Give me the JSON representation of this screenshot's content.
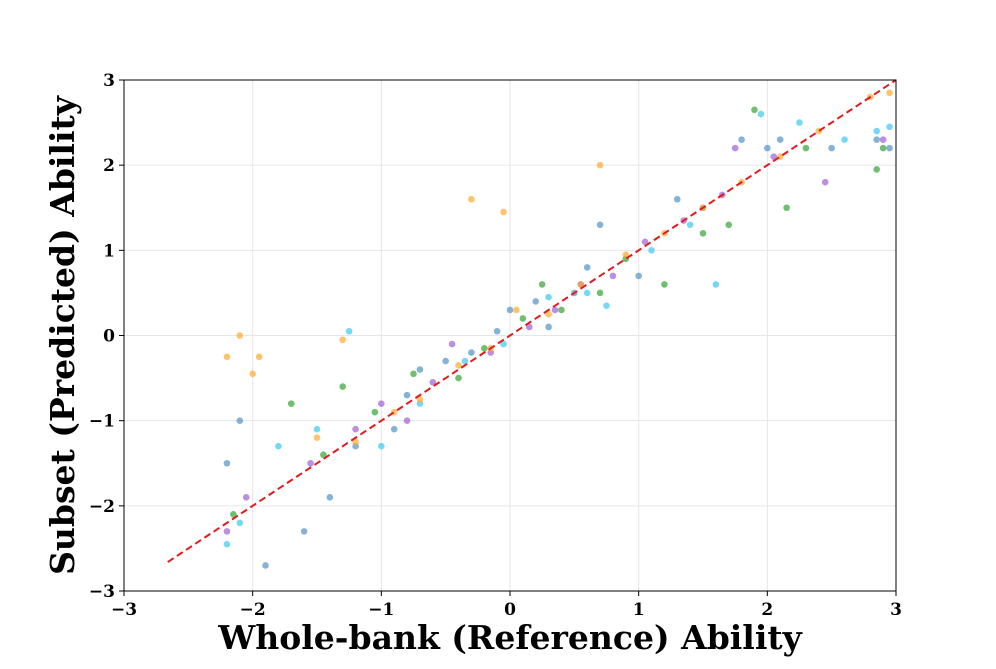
{
  "chart_data": {
    "type": "scatter",
    "title": "",
    "xlabel": "Whole-bank (Reference) Ability",
    "ylabel": "Subset (Predicted) Ability",
    "xlim": [
      -3,
      3
    ],
    "ylim": [
      -3,
      3
    ],
    "xticks": [
      -3,
      -2,
      -1,
      0,
      1,
      2,
      3
    ],
    "yticks": [
      -3,
      -2,
      -1,
      0,
      1,
      2,
      3
    ],
    "xtick_labels": [
      "−3",
      "−2",
      "−1",
      "0",
      "1",
      "2",
      "3"
    ],
    "ytick_labels": [
      "−3",
      "−2",
      "−1",
      "0",
      "1",
      "2",
      "3"
    ],
    "grid": true,
    "legend": "none",
    "reference_line": {
      "style": "dashed",
      "color": "#e31a1c",
      "x": [
        -2.66,
        3.0
      ],
      "y": [
        -2.66,
        3.0
      ]
    },
    "series": [
      {
        "color": "#4c8fc1",
        "points": [
          [
            -2.2,
            -1.5
          ],
          [
            -2.1,
            -1.0
          ],
          [
            -1.9,
            -2.7
          ],
          [
            -1.6,
            -2.3
          ],
          [
            -1.4,
            -1.9
          ],
          [
            -1.2,
            -1.3
          ],
          [
            -0.9,
            -1.1
          ],
          [
            -0.8,
            -0.7
          ],
          [
            -0.7,
            -0.4
          ],
          [
            -0.5,
            -0.3
          ],
          [
            -0.3,
            -0.2
          ],
          [
            -0.1,
            0.05
          ],
          [
            0.0,
            0.3
          ],
          [
            0.2,
            0.4
          ],
          [
            0.3,
            0.1
          ],
          [
            0.5,
            0.5
          ],
          [
            0.6,
            0.8
          ],
          [
            0.7,
            1.3
          ],
          [
            1.0,
            0.7
          ],
          [
            1.3,
            1.6
          ],
          [
            1.5,
            1.5
          ],
          [
            1.8,
            2.3
          ],
          [
            2.0,
            2.2
          ],
          [
            2.1,
            2.3
          ],
          [
            2.5,
            2.2
          ],
          [
            2.85,
            2.3
          ],
          [
            2.95,
            2.2
          ]
        ]
      },
      {
        "color": "#2ca02c",
        "points": [
          [
            -2.15,
            -2.1
          ],
          [
            -1.7,
            -0.8
          ],
          [
            -1.45,
            -1.4
          ],
          [
            -1.3,
            -0.6
          ],
          [
            -1.05,
            -0.9
          ],
          [
            -0.75,
            -0.45
          ],
          [
            -0.4,
            -0.5
          ],
          [
            -0.2,
            -0.15
          ],
          [
            0.1,
            0.2
          ],
          [
            0.25,
            0.6
          ],
          [
            0.4,
            0.3
          ],
          [
            0.7,
            0.5
          ],
          [
            0.9,
            0.9
          ],
          [
            1.2,
            0.6
          ],
          [
            1.5,
            1.2
          ],
          [
            1.7,
            1.3
          ],
          [
            1.9,
            2.65
          ],
          [
            2.15,
            1.5
          ],
          [
            2.3,
            2.2
          ],
          [
            2.85,
            1.95
          ],
          [
            2.9,
            2.2
          ]
        ]
      },
      {
        "color": "#9b59d6",
        "points": [
          [
            -2.2,
            -2.3
          ],
          [
            -2.05,
            -1.9
          ],
          [
            -1.55,
            -1.5
          ],
          [
            -1.2,
            -1.1
          ],
          [
            -1.0,
            -0.8
          ],
          [
            -0.8,
            -1.0
          ],
          [
            -0.6,
            -0.55
          ],
          [
            -0.45,
            -0.1
          ],
          [
            -0.15,
            -0.2
          ],
          [
            0.15,
            0.1
          ],
          [
            0.35,
            0.3
          ],
          [
            0.55,
            0.6
          ],
          [
            0.8,
            0.7
          ],
          [
            1.05,
            1.1
          ],
          [
            1.35,
            1.35
          ],
          [
            1.65,
            1.65
          ],
          [
            1.75,
            2.2
          ],
          [
            2.05,
            2.1
          ],
          [
            2.45,
            1.8
          ],
          [
            2.9,
            2.3
          ]
        ]
      },
      {
        "color": "#36c5f0",
        "points": [
          [
            -2.2,
            -2.45
          ],
          [
            -2.1,
            -2.2
          ],
          [
            -1.8,
            -1.3
          ],
          [
            -1.5,
            -1.1
          ],
          [
            -1.25,
            0.05
          ],
          [
            -1.0,
            -1.3
          ],
          [
            -0.7,
            -0.8
          ],
          [
            -0.35,
            -0.3
          ],
          [
            -0.05,
            -0.1
          ],
          [
            0.3,
            0.45
          ],
          [
            0.6,
            0.5
          ],
          [
            0.75,
            0.35
          ],
          [
            1.1,
            1.0
          ],
          [
            1.4,
            1.3
          ],
          [
            1.6,
            0.6
          ],
          [
            1.95,
            2.6
          ],
          [
            2.25,
            2.5
          ],
          [
            2.6,
            2.3
          ],
          [
            2.85,
            2.4
          ],
          [
            2.95,
            2.45
          ]
        ]
      },
      {
        "color": "#ffa726",
        "points": [
          [
            -2.1,
            0.0
          ],
          [
            -2.2,
            -0.25
          ],
          [
            -2.0,
            -0.45
          ],
          [
            -1.95,
            -0.25
          ],
          [
            -1.3,
            -0.05
          ],
          [
            -1.5,
            -1.2
          ],
          [
            -1.2,
            -1.25
          ],
          [
            -0.9,
            -0.9
          ],
          [
            -0.7,
            -0.75
          ],
          [
            -0.4,
            -0.35
          ],
          [
            -0.3,
            1.6
          ],
          [
            -0.15,
            -0.15
          ],
          [
            -0.05,
            1.45
          ],
          [
            0.05,
            0.3
          ],
          [
            0.3,
            0.25
          ],
          [
            0.55,
            0.6
          ],
          [
            0.7,
            2.0
          ],
          [
            0.9,
            0.95
          ],
          [
            1.2,
            1.2
          ],
          [
            1.5,
            1.5
          ],
          [
            1.8,
            1.8
          ],
          [
            2.1,
            2.1
          ],
          [
            2.4,
            2.4
          ],
          [
            2.8,
            2.8
          ],
          [
            2.95,
            2.85
          ]
        ]
      }
    ]
  }
}
